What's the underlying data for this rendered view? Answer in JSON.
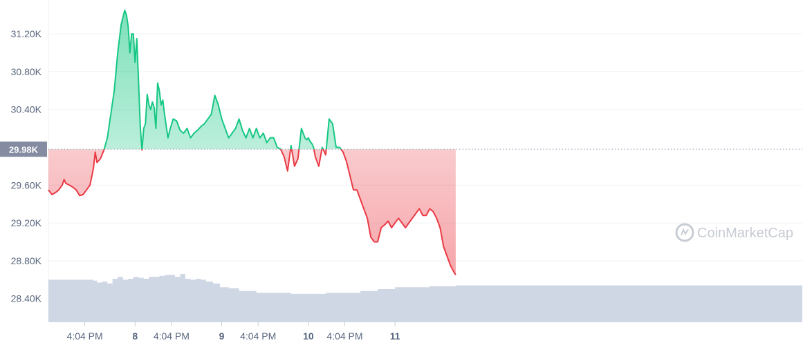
{
  "chart_data": {
    "type": "area",
    "title": "",
    "xlabel": "",
    "ylabel": "",
    "ylim": [
      28.15,
      31.5
    ],
    "xlim": [
      0,
      4.35
    ],
    "y_ticks": [
      {
        "value": 31.2,
        "label": "31.20K"
      },
      {
        "value": 30.8,
        "label": "30.80K"
      },
      {
        "value": 30.4,
        "label": "30.40K"
      },
      {
        "value": 29.6,
        "label": "29.60K"
      },
      {
        "value": 29.2,
        "label": "29.20K"
      },
      {
        "value": 28.8,
        "label": "28.80K"
      },
      {
        "value": 28.4,
        "label": "28.40K"
      }
    ],
    "x_ticks": [
      {
        "value": 0.21,
        "label": "4:04 PM",
        "bold": false
      },
      {
        "value": 0.5,
        "label": "8",
        "bold": true
      },
      {
        "value": 0.71,
        "label": "4:04 PM",
        "bold": false
      },
      {
        "value": 1.0,
        "label": "9",
        "bold": true
      },
      {
        "value": 1.21,
        "label": "4:04 PM",
        "bold": false
      },
      {
        "value": 1.5,
        "label": "10",
        "bold": true
      },
      {
        "value": 1.71,
        "label": "4:04 PM",
        "bold": false
      },
      {
        "value": 2.0,
        "label": "11",
        "bold": true
      }
    ],
    "reference_line": {
      "value": 29.98,
      "label": "29.98K"
    },
    "up_color": "#16c784",
    "down_color": "#ea3943",
    "grid": true,
    "price_series": {
      "x": [
        0,
        0.02,
        0.04,
        0.06,
        0.08,
        0.09,
        0.1,
        0.12,
        0.14,
        0.16,
        0.18,
        0.2,
        0.22,
        0.24,
        0.26,
        0.27,
        0.28,
        0.3,
        0.32,
        0.34,
        0.36,
        0.38,
        0.4,
        0.42,
        0.44,
        0.45,
        0.46,
        0.47,
        0.48,
        0.49,
        0.5,
        0.51,
        0.52,
        0.53,
        0.54,
        0.55,
        0.56,
        0.57,
        0.58,
        0.59,
        0.6,
        0.61,
        0.62,
        0.63,
        0.64,
        0.65,
        0.66,
        0.67,
        0.68,
        0.69,
        0.7,
        0.72,
        0.74,
        0.76,
        0.78,
        0.8,
        0.82,
        0.84,
        0.86,
        0.88,
        0.9,
        0.92,
        0.94,
        0.96,
        0.98,
        1.0,
        1.02,
        1.04,
        1.06,
        1.08,
        1.1,
        1.12,
        1.14,
        1.16,
        1.18,
        1.2,
        1.22,
        1.24,
        1.26,
        1.28,
        1.3,
        1.32,
        1.34,
        1.36,
        1.38,
        1.4,
        1.42,
        1.44,
        1.46,
        1.48,
        1.49,
        1.5,
        1.51,
        1.52,
        1.53,
        1.54,
        1.56,
        1.58,
        1.6,
        1.62,
        1.64,
        1.66,
        1.68,
        1.7,
        1.72,
        1.74,
        1.76,
        1.78,
        1.8,
        1.82,
        1.84,
        1.86,
        1.88,
        1.9,
        1.92,
        1.94,
        1.96,
        1.98,
        2.0,
        2.02,
        2.04,
        2.06,
        2.08,
        2.1,
        2.12,
        2.14,
        2.16,
        2.18,
        2.2,
        2.22,
        2.24,
        2.26,
        2.28,
        2.3,
        2.32,
        2.34,
        2.35
      ],
      "y": [
        29.55,
        29.5,
        29.52,
        29.55,
        29.6,
        29.66,
        29.62,
        29.6,
        29.58,
        29.55,
        29.49,
        29.5,
        29.55,
        29.6,
        29.78,
        29.95,
        29.84,
        29.88,
        29.97,
        30.1,
        30.35,
        30.6,
        31.0,
        31.3,
        31.45,
        31.4,
        31.28,
        31.0,
        31.2,
        31.2,
        30.9,
        31.15,
        30.7,
        30.22,
        29.97,
        30.2,
        30.25,
        30.56,
        30.45,
        30.4,
        30.48,
        30.42,
        30.2,
        30.68,
        30.6,
        30.45,
        30.5,
        30.35,
        30.22,
        30.1,
        30.18,
        30.3,
        30.28,
        30.18,
        30.15,
        30.2,
        30.1,
        30.15,
        30.18,
        30.22,
        30.25,
        30.3,
        30.35,
        30.55,
        30.45,
        30.3,
        30.2,
        30.1,
        30.15,
        30.2,
        30.3,
        30.18,
        30.1,
        30.2,
        30.1,
        30.2,
        30.1,
        30.15,
        30.05,
        30.1,
        30.1,
        30.0,
        29.98,
        29.9,
        29.75,
        30.02,
        29.8,
        29.88,
        30.2,
        30.1,
        30.08,
        30.1,
        30.06,
        30.04,
        30.0,
        29.9,
        29.8,
        30.0,
        29.92,
        30.3,
        30.25,
        30.0,
        30.0,
        29.95,
        29.85,
        29.7,
        29.55,
        29.55,
        29.45,
        29.35,
        29.25,
        29.05,
        29.0,
        29.0,
        29.15,
        29.18,
        29.22,
        29.15,
        29.2,
        29.25,
        29.2,
        29.15,
        29.2,
        29.25,
        29.3,
        29.35,
        29.28,
        29.28,
        29.35,
        29.32,
        29.25,
        29.15,
        28.95,
        28.85,
        28.75,
        28.68,
        28.65
      ]
    },
    "volume_series": {
      "x": [
        0,
        0.2,
        0.24,
        0.26,
        0.28,
        0.31,
        0.34,
        0.37,
        0.4,
        0.43,
        0.46,
        0.49,
        0.52,
        0.55,
        0.58,
        0.61,
        0.64,
        0.67,
        0.7,
        0.73,
        0.76,
        0.79,
        0.82,
        0.85,
        0.88,
        0.91,
        0.95,
        0.99,
        1.04,
        1.1,
        1.2,
        1.3,
        1.4,
        1.5,
        1.6,
        1.7,
        1.8,
        1.9,
        2.0,
        2.1,
        2.2,
        2.3,
        2.35
      ],
      "y": [
        28.6,
        28.6,
        28.6,
        28.59,
        28.57,
        28.58,
        28.56,
        28.61,
        28.63,
        28.6,
        28.61,
        28.63,
        28.62,
        28.61,
        28.63,
        28.63,
        28.64,
        28.65,
        28.65,
        28.63,
        28.66,
        28.61,
        28.6,
        28.61,
        28.6,
        28.58,
        28.56,
        28.52,
        28.51,
        28.48,
        28.46,
        28.46,
        28.45,
        28.45,
        28.46,
        28.46,
        28.48,
        28.5,
        28.52,
        28.52,
        28.53,
        28.53,
        28.54
      ]
    },
    "watermark": "CoinMarketCap"
  }
}
